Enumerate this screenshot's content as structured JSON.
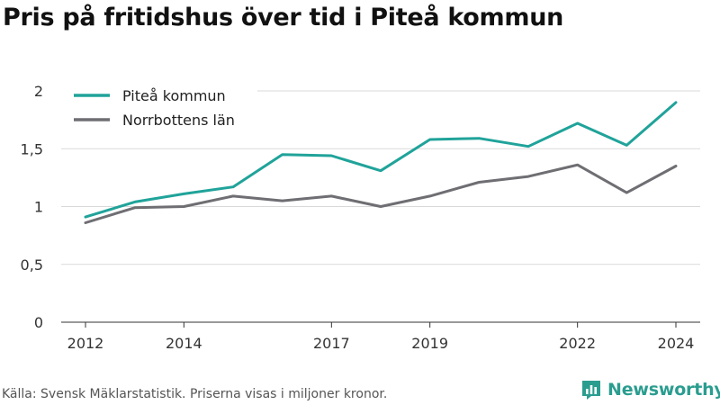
{
  "title": "Pris på fritidshus över tid i Piteå kommun",
  "source": "Källa: Svensk Mäklarstatistik. Priserna visas i miljoner kronor.",
  "brand": {
    "name": "Newsworthy",
    "color": "#2a9d8f",
    "icon": "bar-chart-icon"
  },
  "chart_data": {
    "type": "line",
    "x": [
      2012,
      2013,
      2014,
      2015,
      2016,
      2017,
      2018,
      2019,
      2020,
      2021,
      2022,
      2023,
      2024
    ],
    "x_ticks": [
      "2012",
      "2014",
      "2017",
      "2019",
      "2022",
      "2024"
    ],
    "y_ticks": [
      "0",
      "0,5",
      "1",
      "1,5",
      "2"
    ],
    "ylim": [
      0,
      2
    ],
    "grid": true,
    "legend_position": "top-left",
    "series": [
      {
        "name": "Piteå kommun",
        "color": "#20a39a",
        "values": [
          0.91,
          1.04,
          1.11,
          1.17,
          1.45,
          1.44,
          1.31,
          1.58,
          1.59,
          1.52,
          1.72,
          1.53,
          1.9
        ]
      },
      {
        "name": "Norrbottens län",
        "color": "#6e6e73",
        "values": [
          0.86,
          0.99,
          1.0,
          1.09,
          1.05,
          1.09,
          1.0,
          1.09,
          1.21,
          1.26,
          1.36,
          1.12,
          1.35
        ]
      }
    ]
  }
}
